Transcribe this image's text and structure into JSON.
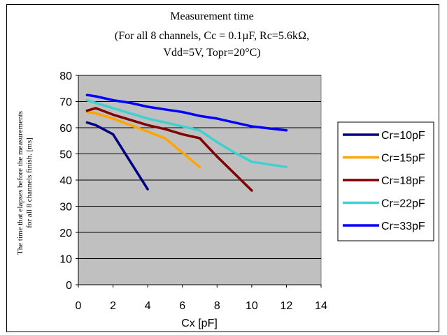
{
  "chart_data": {
    "type": "line",
    "title": "Measurement time",
    "subtitle_lines": [
      "(For all 8 channels, Cc = 0.1µF, Rc=5.6kΩ,",
      "Vdd=5V, Topr=20°C)"
    ],
    "xlabel": "Cx [pF]",
    "ylabel_lines": [
      "The time that elapses before the measurements",
      "for all 8 channels finish. [ms]"
    ],
    "xlim": [
      0,
      14
    ],
    "ylim": [
      0,
      80
    ],
    "xticks": [
      0,
      2,
      4,
      6,
      8,
      10,
      12,
      14
    ],
    "yticks": [
      0,
      10,
      20,
      30,
      40,
      50,
      60,
      70,
      80
    ],
    "grid": "horizontal",
    "plot_background": "#c0c0c0",
    "legend_position": "right",
    "series": [
      {
        "name": "Cr=10pF",
        "color": "#000080",
        "points": [
          [
            0.5,
            62
          ],
          [
            1,
            61
          ],
          [
            2,
            57.5
          ],
          [
            3,
            47
          ],
          [
            4,
            36.5
          ]
        ]
      },
      {
        "name": "Cr=15pF",
        "color": "#ffa500",
        "points": [
          [
            0.5,
            66
          ],
          [
            1,
            65.5
          ],
          [
            2,
            63.5
          ],
          [
            3,
            61
          ],
          [
            4,
            58.5
          ],
          [
            5,
            56
          ],
          [
            6,
            50.5
          ],
          [
            7,
            45
          ]
        ]
      },
      {
        "name": "Cr=18pF",
        "color": "#800000",
        "points": [
          [
            0.5,
            66.5
          ],
          [
            1,
            67.5
          ],
          [
            2,
            65
          ],
          [
            3,
            63
          ],
          [
            4,
            61
          ],
          [
            5,
            59.5
          ],
          [
            6,
            57.5
          ],
          [
            7,
            56
          ],
          [
            8,
            49
          ],
          [
            9,
            42.5
          ],
          [
            10,
            36
          ]
        ]
      },
      {
        "name": "Cr=22pF",
        "color": "#40d0d0",
        "points": [
          [
            0.5,
            70.5
          ],
          [
            1,
            69.5
          ],
          [
            2,
            67.5
          ],
          [
            3,
            65.5
          ],
          [
            4,
            63.5
          ],
          [
            5,
            62
          ],
          [
            6,
            60.5
          ],
          [
            7,
            59
          ],
          [
            8,
            54.5
          ],
          [
            9,
            50.5
          ],
          [
            10,
            47
          ],
          [
            12,
            45
          ]
        ]
      },
      {
        "name": "Cr=33pF",
        "color": "#0000ff",
        "points": [
          [
            0.5,
            72.5
          ],
          [
            1,
            72
          ],
          [
            2,
            70.5
          ],
          [
            3,
            69.5
          ],
          [
            4,
            68
          ],
          [
            5,
            67
          ],
          [
            6,
            66
          ],
          [
            7,
            64.5
          ],
          [
            8,
            63.5
          ],
          [
            10,
            60.5
          ],
          [
            12,
            59
          ]
        ]
      }
    ]
  }
}
